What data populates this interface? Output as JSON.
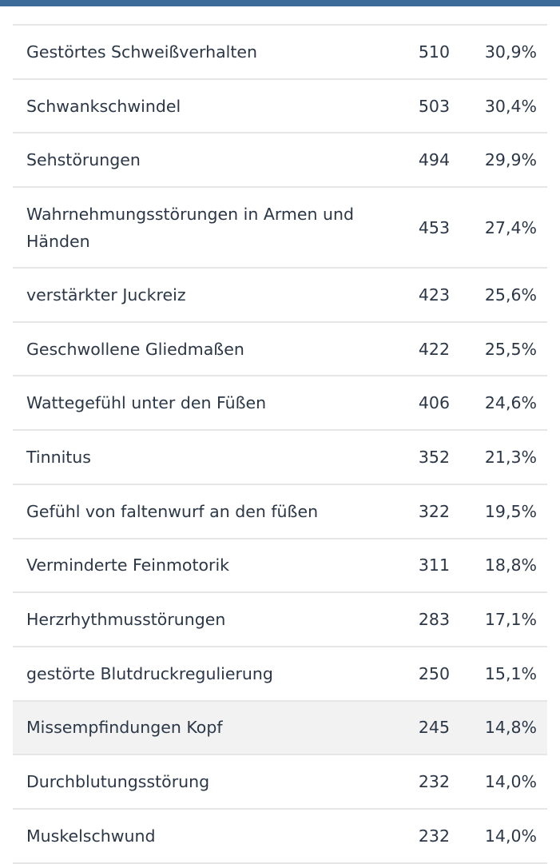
{
  "rows": [
    {
      "name": "Gestörtes Schweißverhalten",
      "count": "510",
      "percent": "30,9%"
    },
    {
      "name": "Schwankschwindel",
      "count": "503",
      "percent": "30,4%"
    },
    {
      "name": "Sehstörungen",
      "count": "494",
      "percent": "29,9%"
    },
    {
      "name": "Wahrnehmungsstörungen in Armen und Händen",
      "count": "453",
      "percent": "27,4%"
    },
    {
      "name": "verstärkter Juckreiz",
      "count": "423",
      "percent": "25,6%"
    },
    {
      "name": "Geschwollene Gliedmaßen",
      "count": "422",
      "percent": "25,5%"
    },
    {
      "name": "Wattegefühl unter den Füßen",
      "count": "406",
      "percent": "24,6%"
    },
    {
      "name": "Tinnitus",
      "count": "352",
      "percent": "21,3%"
    },
    {
      "name": "Gefühl von faltenwurf an den füßen",
      "count": "322",
      "percent": "19,5%"
    },
    {
      "name": "Verminderte Feinmotorik",
      "count": "311",
      "percent": "18,8%"
    },
    {
      "name": "Herzrhythmusstörungen",
      "count": "283",
      "percent": "17,1%"
    },
    {
      "name": "gestörte Blutdruckregulierung",
      "count": "250",
      "percent": "15,1%"
    },
    {
      "name": "Missempfindungen Kopf",
      "count": "245",
      "percent": "14,8%"
    },
    {
      "name": "Durchblutungsstörung",
      "count": "232",
      "percent": "14,0%"
    },
    {
      "name": "Muskelschwund",
      "count": "232",
      "percent": "14,0%"
    }
  ],
  "highlight_index": 12,
  "colors": {
    "header_bar": "#3c6a99",
    "highlight_row": "#f2f2f2"
  }
}
